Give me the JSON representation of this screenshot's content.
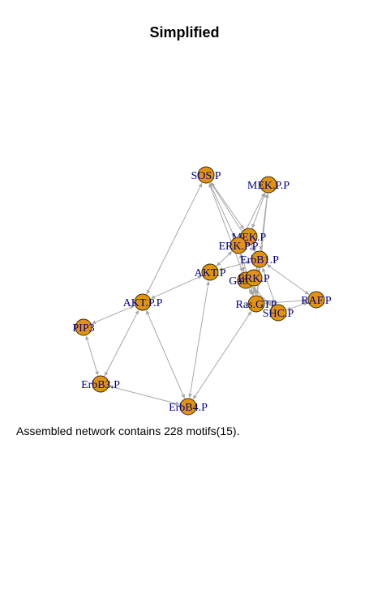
{
  "title": "Simplified",
  "caption": "Assembled network contains 228 motifs(15).",
  "colors": {
    "node_fill": "#e3940f",
    "node_stroke": "#3a2a00",
    "edge": "#a8a8a8",
    "label": "#00008b"
  },
  "nodes": [
    {
      "id": "SOS.P",
      "label": "SOS.P"
    },
    {
      "id": "MEK.P.P",
      "label": "MEK.P.P"
    },
    {
      "id": "MEK.P",
      "label": "MEK.P"
    },
    {
      "id": "ERK.P.P",
      "label": "ERK.P.P"
    },
    {
      "id": "ErbB1.P",
      "label": "ErbB1.P"
    },
    {
      "id": "AKT.P",
      "label": "AKT.P"
    },
    {
      "id": "Gab1.P",
      "label": "Gab1.P"
    },
    {
      "id": "ERK.P",
      "label": "ERK.P"
    },
    {
      "id": "Ras.GTP",
      "label": "Ras.GTP"
    },
    {
      "id": "SHC.P",
      "label": "SHC.P"
    },
    {
      "id": "RAF.P",
      "label": "RAF.P"
    },
    {
      "id": "AKT.P.P",
      "label": "AKT.P.P"
    },
    {
      "id": "PIP3",
      "label": "PIP3"
    },
    {
      "id": "ErbB3.P",
      "label": "ErbB3.P"
    },
    {
      "id": "ErbB4.P",
      "label": "ErbB4.P"
    }
  ],
  "edges": [
    [
      "SOS.P",
      "AKT.P.P"
    ],
    [
      "SOS.P",
      "MEK.P"
    ],
    [
      "SOS.P",
      "ERK.P.P"
    ],
    [
      "SOS.P",
      "ErbB1.P"
    ],
    [
      "SOS.P",
      "Gab1.P"
    ],
    [
      "MEK.P.P",
      "MEK.P"
    ],
    [
      "MEK.P.P",
      "ERK.P.P"
    ],
    [
      "MEK.P.P",
      "ErbB1.P"
    ],
    [
      "MEK.P.P",
      "Ras.GTP"
    ],
    [
      "AKT.P",
      "AKT.P.P"
    ],
    [
      "AKT.P",
      "ERK.P.P"
    ],
    [
      "AKT.P",
      "ErbB1.P"
    ],
    [
      "AKT.P",
      "ErbB4.P"
    ],
    [
      "AKT.P.P",
      "PIP3"
    ],
    [
      "AKT.P.P",
      "ErbB3.P"
    ],
    [
      "AKT.P.P",
      "ErbB4.P"
    ],
    [
      "PIP3",
      "ErbB3.P"
    ],
    [
      "ErbB3.P",
      "ErbB4.P"
    ],
    [
      "ErbB4.P",
      "Ras.GTP"
    ],
    [
      "RAF.P",
      "ErbB1.P"
    ],
    [
      "RAF.P",
      "Ras.GTP"
    ],
    [
      "RAF.P",
      "SHC.P"
    ],
    [
      "Ras.GTP",
      "ERK.P.P"
    ],
    [
      "Ras.GTP",
      "ErbB1.P"
    ],
    [
      "Ras.GTP",
      "Gab1.P"
    ],
    [
      "SHC.P",
      "ErbB1.P"
    ],
    [
      "SHC.P",
      "Gab1.P"
    ],
    [
      "Gab1.P",
      "ERK.P.P"
    ],
    [
      "ERK.P",
      "ErbB1.P"
    ],
    [
      "ERK.P",
      "Ras.GTP"
    ],
    [
      "MEK.P",
      "ErbB1.P"
    ],
    [
      "MEK.P",
      "ERK.P.P"
    ]
  ]
}
